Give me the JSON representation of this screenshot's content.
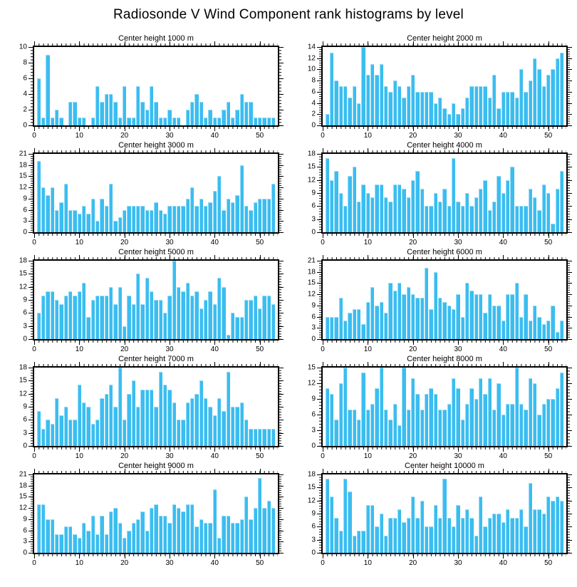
{
  "page_title": "Radiosonde V Wind Component rank histograms by level",
  "accent_color": "#3BBDF0",
  "axis_color": "#000000",
  "layout_hints": {
    "grid_rows": 5,
    "grid_cols": 2,
    "legend": "none",
    "grid_lines": "off"
  },
  "chart_data": [
    {
      "type": "bar",
      "title": "Center height 1000 m",
      "ylim": [
        0,
        10
      ],
      "ytick_step": 2,
      "xlim": [
        0,
        54
      ],
      "xticks": [
        0,
        10,
        20,
        30,
        40,
        50
      ],
      "values": [
        6,
        1,
        9,
        1,
        2,
        1,
        0,
        3,
        3,
        1,
        1,
        0,
        1,
        5,
        3,
        4,
        4,
        3,
        1,
        5,
        1,
        1,
        5,
        3,
        2,
        5,
        3,
        1,
        1,
        2,
        1,
        1,
        0,
        2,
        3,
        4,
        3,
        1,
        2,
        1,
        1,
        2,
        3,
        1,
        2,
        4,
        3,
        3,
        1,
        1,
        1,
        1,
        1
      ]
    },
    {
      "type": "bar",
      "title": "Center height 2000 m",
      "ylim": [
        0,
        14
      ],
      "ytick_step": 2,
      "xlim": [
        0,
        54
      ],
      "xticks": [
        0,
        10,
        20,
        30,
        40,
        50
      ],
      "values": [
        2,
        13,
        8,
        7,
        7,
        5,
        7,
        4,
        14,
        9,
        11,
        9,
        11,
        7,
        6,
        8,
        7,
        5,
        7,
        9,
        6,
        6,
        6,
        6,
        4,
        5,
        3,
        2,
        4,
        2,
        3,
        5,
        7,
        7,
        7,
        7,
        5,
        9,
        3,
        6,
        6,
        6,
        5,
        10,
        6,
        8,
        12,
        10,
        7,
        9,
        10,
        12,
        13
      ]
    },
    {
      "type": "bar",
      "title": "Center height 3000 m",
      "ylim": [
        0,
        21
      ],
      "ytick_step": 3,
      "xlim": [
        0,
        54
      ],
      "xticks": [
        0,
        10,
        20,
        30,
        40,
        50
      ],
      "values": [
        19,
        12,
        10,
        12,
        6,
        8,
        13,
        6,
        6,
        5,
        7,
        5,
        9,
        3,
        9,
        7,
        13,
        3,
        4,
        6,
        7,
        7,
        7,
        7,
        6,
        6,
        8,
        6,
        5,
        7,
        7,
        7,
        7,
        9,
        12,
        7,
        9,
        7,
        8,
        11,
        15,
        6,
        9,
        8,
        10,
        18,
        7,
        6,
        8,
        9,
        9,
        9,
        13
      ]
    },
    {
      "type": "bar",
      "title": "Center height 4000 m",
      "ylim": [
        0,
        18
      ],
      "ytick_step": 3,
      "xlim": [
        0,
        54
      ],
      "xticks": [
        0,
        10,
        20,
        30,
        40,
        50
      ],
      "values": [
        17,
        12,
        14,
        9,
        6,
        13,
        15,
        7,
        11,
        9,
        8,
        11,
        11,
        8,
        7,
        11,
        11,
        10,
        8,
        12,
        14,
        10,
        6,
        6,
        9,
        7,
        10,
        6,
        17,
        7,
        6,
        9,
        6,
        8,
        10,
        12,
        5,
        7,
        13,
        9,
        12,
        15,
        6,
        6,
        6,
        10,
        8,
        5,
        11,
        9,
        2,
        10,
        14
      ]
    },
    {
      "type": "bar",
      "title": "Center height 5000 m",
      "ylim": [
        0,
        18
      ],
      "ytick_step": 3,
      "xlim": [
        0,
        54
      ],
      "xticks": [
        0,
        10,
        20,
        30,
        40,
        50
      ],
      "values": [
        6,
        10,
        11,
        11,
        9,
        8,
        10,
        11,
        10,
        11,
        13,
        5,
        9,
        10,
        10,
        10,
        12,
        8,
        12,
        3,
        10,
        8,
        15,
        8,
        14,
        11,
        9,
        9,
        6,
        10,
        18,
        12,
        11,
        13,
        10,
        11,
        7,
        9,
        11,
        8,
        14,
        12,
        1,
        6,
        5,
        5,
        9,
        9,
        10,
        7,
        10,
        10,
        8
      ]
    },
    {
      "type": "bar",
      "title": "Center height 6000 m",
      "ylim": [
        0,
        21
      ],
      "ytick_step": 3,
      "xlim": [
        0,
        54
      ],
      "xticks": [
        0,
        10,
        20,
        30,
        40,
        50
      ],
      "values": [
        6,
        6,
        6,
        11,
        5,
        7,
        8,
        8,
        4,
        10,
        14,
        9,
        10,
        7,
        15,
        13,
        15,
        12,
        14,
        12,
        11,
        11,
        19,
        8,
        18,
        11,
        10,
        9,
        8,
        12,
        6,
        15,
        13,
        12,
        12,
        7,
        12,
        9,
        9,
        5,
        12,
        12,
        15,
        6,
        12,
        5,
        9,
        6,
        4,
        5,
        9,
        2,
        5
      ]
    },
    {
      "type": "bar",
      "title": "Center height 7000 m",
      "ylim": [
        0,
        18
      ],
      "ytick_step": 3,
      "xlim": [
        0,
        54
      ],
      "xticks": [
        0,
        10,
        20,
        30,
        40,
        50
      ],
      "values": [
        8,
        4,
        6,
        5,
        11,
        7,
        9,
        6,
        6,
        14,
        10,
        9,
        5,
        6,
        11,
        12,
        14,
        9,
        18,
        6,
        12,
        15,
        9,
        13,
        13,
        13,
        9,
        17,
        14,
        13,
        10,
        6,
        6,
        10,
        11,
        12,
        15,
        11,
        9,
        7,
        11,
        8,
        17,
        9,
        9,
        10,
        6,
        4,
        4,
        4,
        4,
        4,
        4
      ]
    },
    {
      "type": "bar",
      "title": "Center height 8000 m",
      "ylim": [
        0,
        15
      ],
      "ytick_step": 3,
      "xlim": [
        0,
        54
      ],
      "xticks": [
        0,
        10,
        20,
        30,
        40,
        50
      ],
      "values": [
        11,
        10,
        5,
        12,
        15,
        7,
        7,
        5,
        14,
        7,
        8,
        11,
        15,
        7,
        5,
        8,
        4,
        15,
        7,
        13,
        10,
        7,
        10,
        11,
        10,
        7,
        7,
        8,
        13,
        11,
        5,
        8,
        11,
        9,
        13,
        10,
        13,
        7,
        12,
        6,
        8,
        8,
        15,
        8,
        7,
        13,
        12,
        6,
        8,
        9,
        9,
        11,
        14
      ]
    },
    {
      "type": "bar",
      "title": "Center height 9000 m",
      "ylim": [
        0,
        21
      ],
      "ytick_step": 3,
      "xlim": [
        0,
        54
      ],
      "xticks": [
        0,
        10,
        20,
        30,
        40,
        50
      ],
      "values": [
        13,
        13,
        9,
        9,
        5,
        5,
        7,
        7,
        5,
        4,
        8,
        6,
        10,
        5,
        10,
        5,
        11,
        12,
        8,
        4,
        6,
        8,
        9,
        11,
        6,
        12,
        13,
        10,
        10,
        8,
        13,
        12,
        11,
        13,
        13,
        7,
        9,
        8,
        8,
        17,
        4,
        10,
        10,
        8,
        8,
        9,
        15,
        9,
        12,
        20,
        12,
        14,
        12
      ]
    },
    {
      "type": "bar",
      "title": "Center height 10000 m",
      "ylim": [
        0,
        18
      ],
      "ytick_step": 3,
      "xlim": [
        0,
        54
      ],
      "xticks": [
        0,
        10,
        20,
        30,
        40,
        50
      ],
      "values": [
        17,
        13,
        8,
        5,
        17,
        14,
        4,
        5,
        5,
        11,
        11,
        6,
        9,
        4,
        8,
        8,
        10,
        7,
        8,
        13,
        8,
        12,
        6,
        6,
        11,
        8,
        17,
        8,
        6,
        11,
        8,
        10,
        8,
        4,
        13,
        6,
        8,
        9,
        9,
        7,
        10,
        8,
        8,
        10,
        6,
        16,
        10,
        10,
        9,
        13,
        12,
        13,
        12
      ]
    }
  ]
}
